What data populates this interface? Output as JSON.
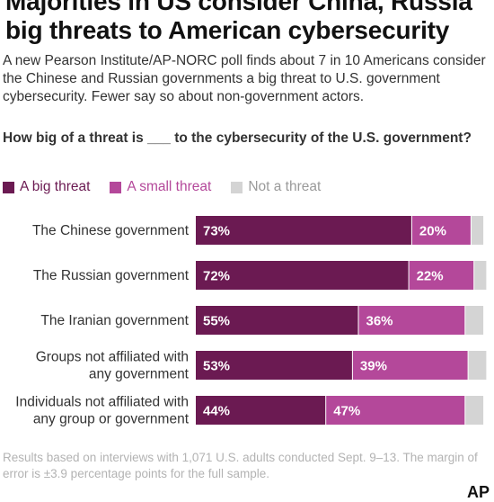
{
  "headline": "Majorities in US consider China, Russia big threats to American cybersecurity",
  "subtitle": "A new Pearson Institute/AP-NORC poll finds about 7 in 10 Americans consider the Chinese and Russian governments a big threat to U.S. government cybersecurity. Fewer say so about non-government actors.",
  "question": "How big of a threat is ___ to the cybersecurity of the U.S. government?",
  "footer": "Results based on interviews with 1,071 U.S. adults conducted Sept. 9–13. The margin of error is ±3.9 percentage points for the full sample.",
  "logo": "AP",
  "colors": {
    "big": "#6b1a52",
    "small": "#b4489a",
    "not": "#d4d4d4",
    "label_text": "#ffffff"
  },
  "chart_data": {
    "type": "bar",
    "orientation": "horizontal",
    "stacked": true,
    "categories": [
      [
        "The Chinese government"
      ],
      [
        "The Russian government"
      ],
      [
        "The Iranian government"
      ],
      [
        "Groups not affiliated with",
        "any government"
      ],
      [
        "Individuals not affiliated with",
        "any group or government"
      ]
    ],
    "series": [
      {
        "name": "A big threat",
        "color": "#6b1a52",
        "values": [
          73,
          72,
          55,
          53,
          44
        ],
        "labels": [
          "73%",
          "72%",
          "55%",
          "53%",
          "44%"
        ]
      },
      {
        "name": "A small threat",
        "color": "#b4489a",
        "values": [
          20,
          22,
          36,
          39,
          47
        ],
        "labels": [
          "20%",
          "22%",
          "36%",
          "39%",
          "47%"
        ]
      },
      {
        "name": "Not a threat",
        "color": "#d4d4d4",
        "values": [
          4,
          4,
          6,
          6,
          6
        ],
        "labels": [
          "",
          "",
          "",
          "",
          ""
        ]
      }
    ],
    "xlim": [
      0,
      100
    ],
    "legend_position": "top-left",
    "grid": false
  }
}
